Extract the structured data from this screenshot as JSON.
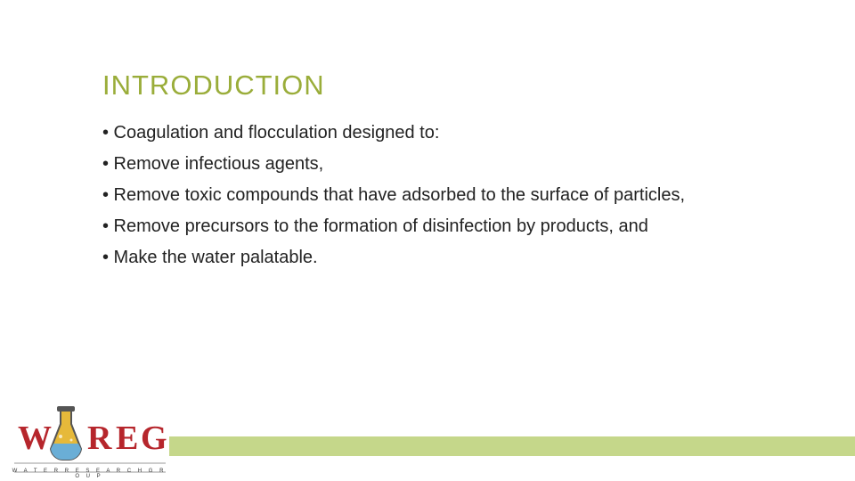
{
  "title": {
    "text": "INTRODUCTION",
    "color": "#9aad3a",
    "fontsize": 31
  },
  "bullets": [
    "•  Coagulation and flocculation designed to:",
    "• Remove infectious agents,",
    "• Remove toxic compounds that have adsorbed to the surface of particles,",
    "• Remove precursors to the formation of disinfection by products, and",
    "• Make the water palatable."
  ],
  "bullet_style": {
    "color": "#222222",
    "fontsize": 20
  },
  "footer_bar": {
    "color": "#c5d78a",
    "height": 22
  },
  "logo": {
    "letters": [
      "W",
      "R",
      "E",
      "G"
    ],
    "letter_color": "#b6262c",
    "flask_body_color": "#e6b93a",
    "flask_liquid_color": "#6aaed6",
    "flask_outline": "#555555",
    "subtitle": "W A T E R   R E S E A R C H   G R O U P",
    "subtitle_color": "#333333"
  }
}
